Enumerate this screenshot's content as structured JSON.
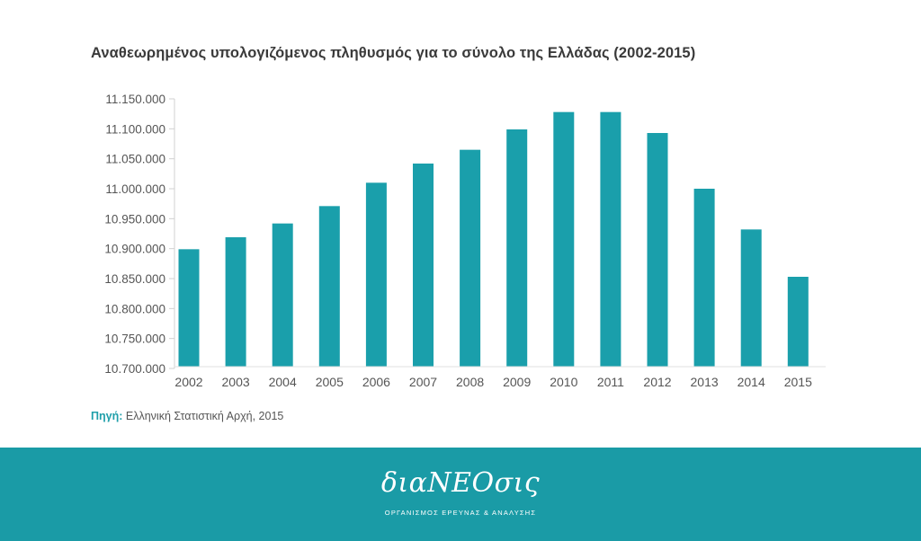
{
  "chart_data": {
    "type": "bar",
    "title": "Αναθεωρημένος υπολογιζόμενος πληθυσμός για το σύνολο της Ελλάδας (2002-2015)",
    "xlabel": "",
    "ylabel": "",
    "categories": [
      "2002",
      "2003",
      "2004",
      "2005",
      "2006",
      "2007",
      "2008",
      "2009",
      "2010",
      "2011",
      "2012",
      "2013",
      "2014",
      "2015"
    ],
    "values": [
      10899000,
      10919000,
      10942000,
      10971000,
      11010000,
      11042000,
      11065000,
      11099000,
      11128000,
      11128000,
      11093000,
      11000000,
      10932000,
      10853000
    ],
    "ylim": [
      10700000,
      11150000
    ],
    "yticks": [
      10700000,
      10750000,
      10800000,
      10850000,
      10900000,
      10950000,
      11000000,
      11050000,
      11100000,
      11150000
    ],
    "ytick_labels": [
      "10.700.000",
      "10.750.000",
      "10.800.000",
      "10.850.000",
      "10.900.000",
      "10.950.000",
      "11.000.000",
      "11.050.000",
      "11.100.000",
      "11.150.000"
    ],
    "bar_color": "#1a9fab",
    "grid": false,
    "legend": "none"
  },
  "source": {
    "label": "Πηγή:",
    "text": " Ελληνική Στατιστική Αρχή, 2015"
  },
  "footer": {
    "brand": "διαNEOσις",
    "tagline": "ΟΡΓΑΝΙΣΜΟΣ ΕΡΕΥΝΑΣ & ΑΝΑΛΥΣΗΣ",
    "background": "#1a9ba6"
  }
}
